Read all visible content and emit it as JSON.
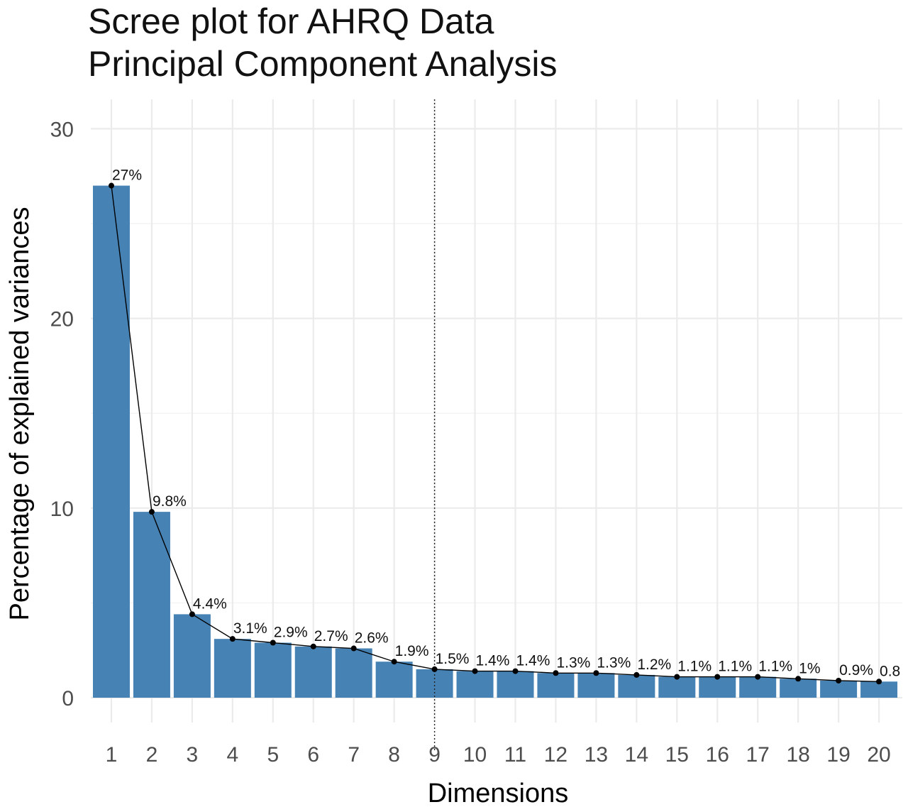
{
  "chart_data": {
    "type": "bar",
    "title": "Scree plot for AHRQ Data",
    "subtitle": "Principal Component Analysis",
    "xlabel": "Dimensions",
    "ylabel": "Percentage of explained variances",
    "categories": [
      "1",
      "2",
      "3",
      "4",
      "5",
      "6",
      "7",
      "8",
      "9",
      "10",
      "11",
      "12",
      "13",
      "14",
      "15",
      "16",
      "17",
      "18",
      "19",
      "20"
    ],
    "values": [
      27,
      9.8,
      4.4,
      3.1,
      2.9,
      2.7,
      2.6,
      1.9,
      1.5,
      1.4,
      1.4,
      1.3,
      1.3,
      1.2,
      1.1,
      1.1,
      1.1,
      1.0,
      0.9,
      0.85
    ],
    "labels": [
      "27%",
      "9.8%",
      "4.4%",
      "3.1%",
      "2.9%",
      "2.7%",
      "2.6%",
      "1.9%",
      "1.5%",
      "1.4%",
      "1.4%",
      "1.3%",
      "1.3%",
      "1.2%",
      "1.1%",
      "1.1%",
      "1.1%",
      "1%",
      "0.9%",
      "0.8"
    ],
    "ylim": [
      0,
      31.5
    ],
    "y_ticks": [
      0,
      10,
      20,
      30
    ],
    "grid": true,
    "line_overlay": true,
    "vertical_reference_at": "9",
    "bar_color": "#4682b4",
    "line_color": "#000000"
  }
}
